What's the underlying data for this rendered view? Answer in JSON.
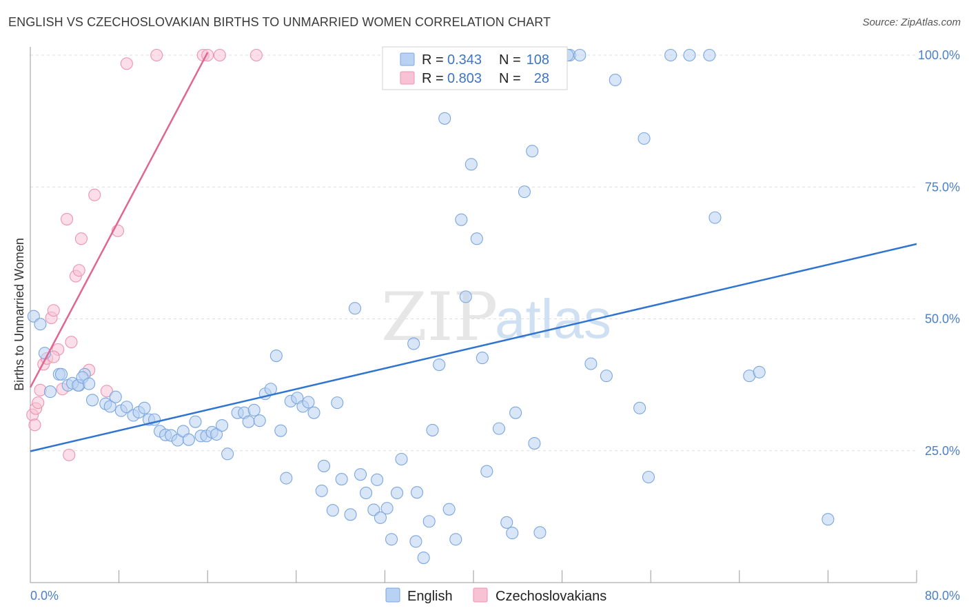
{
  "header": {
    "title": "ENGLISH VS CZECHOSLOVAKIAN BIRTHS TO UNMARRIED WOMEN CORRELATION CHART",
    "source": "Source: ZipAtlas.com"
  },
  "watermark": {
    "zip": "ZIP",
    "atlas": "atlas"
  },
  "colors": {
    "english_fill": "#b9d2f3",
    "english_stroke": "#7aa6e0",
    "english_line": "#2e74d0",
    "czech_fill": "#f7c2d3",
    "czech_stroke": "#ec93b0",
    "czech_line": "#e06592",
    "tick_text": "#4a7fc9",
    "grid": "#dddddd"
  },
  "legend": {
    "rows": [
      {
        "series": "English",
        "r_label": "R =",
        "r_value": "0.343",
        "n_label": "N =",
        "n_value": "108"
      },
      {
        "series": "Czechoslovakians",
        "r_label": "R =",
        "r_value": "0.803",
        "n_label": "N =",
        "n_value": "28"
      }
    ]
  },
  "chart_data": {
    "type": "scatter",
    "title": "ENGLISH VS CZECHOSLOVAKIAN BIRTHS TO UNMARRIED WOMEN CORRELATION CHART",
    "xlabel": "",
    "ylabel": "Births to Unmarried Women",
    "xlim": [
      0,
      80
    ],
    "ylim": [
      0,
      102
    ],
    "x_tick_labels": [
      "0.0%",
      "80.0%"
    ],
    "y_ticks": [
      25,
      50,
      75,
      100
    ],
    "y_tick_labels": [
      "25.0%",
      "50.0%",
      "75.0%",
      "100.0%"
    ],
    "grid": true,
    "legend_position": "top-center",
    "series": [
      {
        "name": "English",
        "r": 0.343,
        "n": 108,
        "trend": {
          "x": [
            0,
            80
          ],
          "y": [
            24.9,
            64.2
          ]
        },
        "points": [
          [
            0.3,
            50.5
          ],
          [
            0.9,
            49.0
          ],
          [
            1.3,
            43.5
          ],
          [
            1.8,
            36.2
          ],
          [
            2.6,
            39.5
          ],
          [
            2.8,
            39.5
          ],
          [
            3.4,
            37.4
          ],
          [
            4.4,
            37.4
          ],
          [
            4.9,
            39.5
          ],
          [
            3.8,
            37.8
          ],
          [
            4.3,
            37.4
          ],
          [
            4.7,
            38.9
          ],
          [
            5.3,
            37.7
          ],
          [
            5.6,
            34.6
          ],
          [
            6.8,
            33.9
          ],
          [
            7.2,
            33.4
          ],
          [
            7.7,
            35.2
          ],
          [
            8.2,
            32.6
          ],
          [
            8.7,
            33.3
          ],
          [
            9.3,
            31.7
          ],
          [
            9.8,
            32.3
          ],
          [
            10.3,
            33.1
          ],
          [
            10.7,
            30.9
          ],
          [
            11.2,
            30.9
          ],
          [
            11.7,
            28.7
          ],
          [
            12.2,
            28.0
          ],
          [
            12.7,
            27.9
          ],
          [
            13.3,
            27.0
          ],
          [
            13.8,
            28.7
          ],
          [
            14.3,
            27.1
          ],
          [
            14.9,
            30.5
          ],
          [
            15.4,
            27.8
          ],
          [
            15.9,
            27.8
          ],
          [
            16.4,
            28.5
          ],
          [
            16.8,
            28.1
          ],
          [
            17.3,
            29.8
          ],
          [
            17.8,
            24.4
          ],
          [
            18.7,
            32.2
          ],
          [
            19.3,
            32.2
          ],
          [
            19.7,
            30.5
          ],
          [
            20.2,
            32.7
          ],
          [
            20.7,
            30.7
          ],
          [
            21.2,
            35.8
          ],
          [
            21.7,
            36.7
          ],
          [
            22.2,
            43.0
          ],
          [
            22.6,
            28.8
          ],
          [
            23.1,
            19.8
          ],
          [
            23.5,
            34.4
          ],
          [
            24.1,
            35.0
          ],
          [
            24.6,
            33.4
          ],
          [
            25.1,
            34.2
          ],
          [
            25.6,
            32.2
          ],
          [
            26.3,
            17.4
          ],
          [
            26.5,
            22.1
          ],
          [
            27.3,
            13.7
          ],
          [
            27.7,
            34.1
          ],
          [
            28.1,
            19.6
          ],
          [
            28.9,
            12.9
          ],
          [
            29.3,
            52.0
          ],
          [
            29.8,
            20.5
          ],
          [
            30.3,
            17.0
          ],
          [
            31.0,
            13.8
          ],
          [
            31.3,
            19.5
          ],
          [
            31.6,
            12.3
          ],
          [
            32.2,
            14.1
          ],
          [
            32.6,
            8.2
          ],
          [
            33.1,
            17.0
          ],
          [
            33.5,
            23.4
          ],
          [
            34.6,
            45.3
          ],
          [
            34.9,
            17.1
          ],
          [
            34.8,
            7.8
          ],
          [
            35.5,
            4.7
          ],
          [
            36.0,
            11.6
          ],
          [
            36.3,
            28.9
          ],
          [
            36.9,
            41.3
          ],
          [
            37.4,
            88.0
          ],
          [
            37.8,
            13.9
          ],
          [
            38.4,
            8.2
          ],
          [
            38.9,
            68.8
          ],
          [
            39.3,
            54.2
          ],
          [
            39.8,
            79.3
          ],
          [
            40.3,
            65.2
          ],
          [
            40.8,
            42.6
          ],
          [
            41.2,
            21.1
          ],
          [
            42.3,
            29.2
          ],
          [
            43.0,
            11.4
          ],
          [
            43.5,
            9.4
          ],
          [
            43.8,
            32.2
          ],
          [
            44.6,
            74.1
          ],
          [
            45.3,
            81.8
          ],
          [
            45.5,
            26.4
          ],
          [
            46.0,
            9.5
          ],
          [
            48.7,
            100.0
          ],
          [
            49.6,
            100.0
          ],
          [
            50.6,
            41.5
          ],
          [
            52.0,
            39.2
          ],
          [
            52.8,
            95.3
          ],
          [
            55.0,
            33.1
          ],
          [
            55.4,
            84.2
          ],
          [
            55.8,
            20.0
          ],
          [
            57.8,
            100.0
          ],
          [
            59.5,
            100.0
          ],
          [
            61.3,
            100.0
          ],
          [
            61.8,
            69.2
          ],
          [
            64.9,
            39.2
          ],
          [
            65.8,
            39.9
          ],
          [
            72.0,
            12.0
          ],
          [
            48.5,
            100.0
          ]
        ]
      },
      {
        "name": "Czechoslovakians",
        "r": 0.803,
        "n": 28,
        "trend": {
          "x": [
            0,
            16
          ],
          "y": [
            37.0,
            100.5
          ]
        },
        "points": [
          [
            0.2,
            31.8
          ],
          [
            0.4,
            29.9
          ],
          [
            0.5,
            33.0
          ],
          [
            0.7,
            34.1
          ],
          [
            0.9,
            36.5
          ],
          [
            1.2,
            41.4
          ],
          [
            1.5,
            42.5
          ],
          [
            1.9,
            50.2
          ],
          [
            2.1,
            51.6
          ],
          [
            2.5,
            44.2
          ],
          [
            2.9,
            36.7
          ],
          [
            3.3,
            68.9
          ],
          [
            3.5,
            24.2
          ],
          [
            3.7,
            45.6
          ],
          [
            4.1,
            58.1
          ],
          [
            4.4,
            59.2
          ],
          [
            4.6,
            65.2
          ],
          [
            5.3,
            40.3
          ],
          [
            5.8,
            73.5
          ],
          [
            6.9,
            36.3
          ],
          [
            7.9,
            66.7
          ],
          [
            8.7,
            98.4
          ],
          [
            11.4,
            100.0
          ],
          [
            15.6,
            100.0
          ],
          [
            16.0,
            100.0
          ],
          [
            17.1,
            100.0
          ],
          [
            20.4,
            100.0
          ],
          [
            2.1,
            42.8
          ]
        ]
      }
    ]
  }
}
